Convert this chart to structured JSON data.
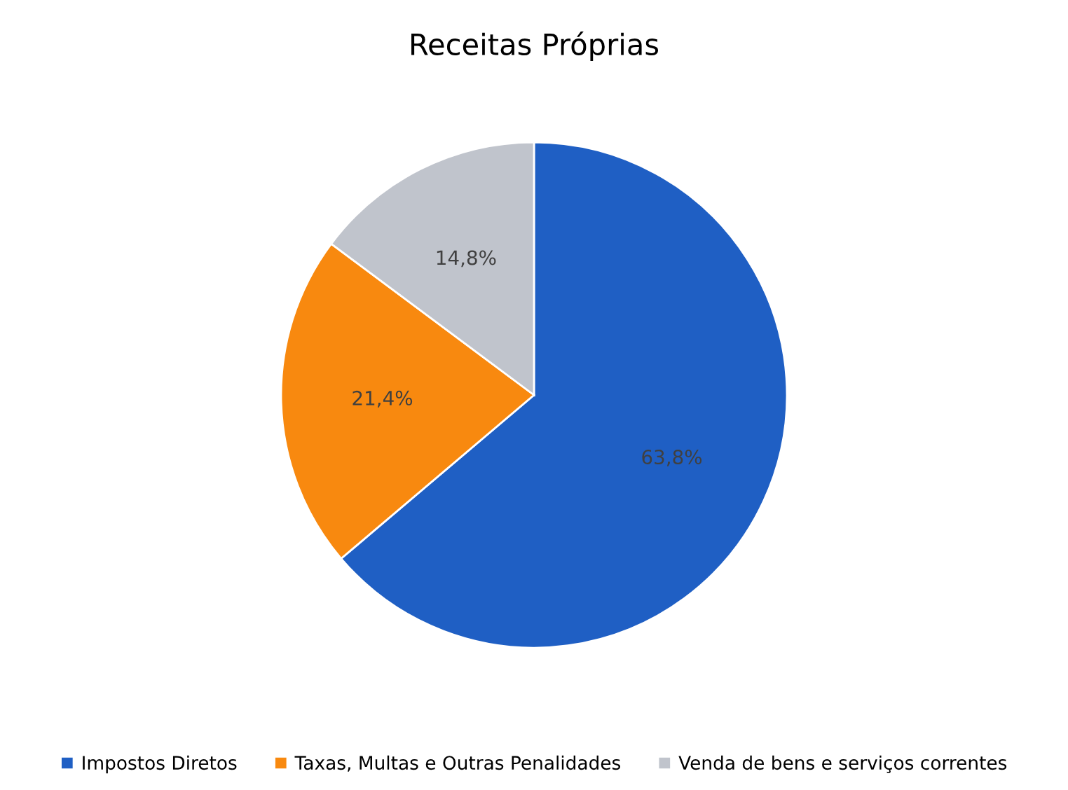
{
  "chart_data": {
    "type": "pie",
    "title": "Receitas Próprias",
    "categories": [
      "Impostos Diretos",
      "Taxas, Multas e Outras Penalidades",
      "Venda de bens e serviços correntes"
    ],
    "values": [
      63.8,
      21.4,
      14.8
    ],
    "value_labels": [
      "63,8%",
      "21,4%",
      "14,8%"
    ],
    "colors": [
      "#1f5fc4",
      "#f8890f",
      "#c0c4cc"
    ],
    "legend": "bottom"
  }
}
